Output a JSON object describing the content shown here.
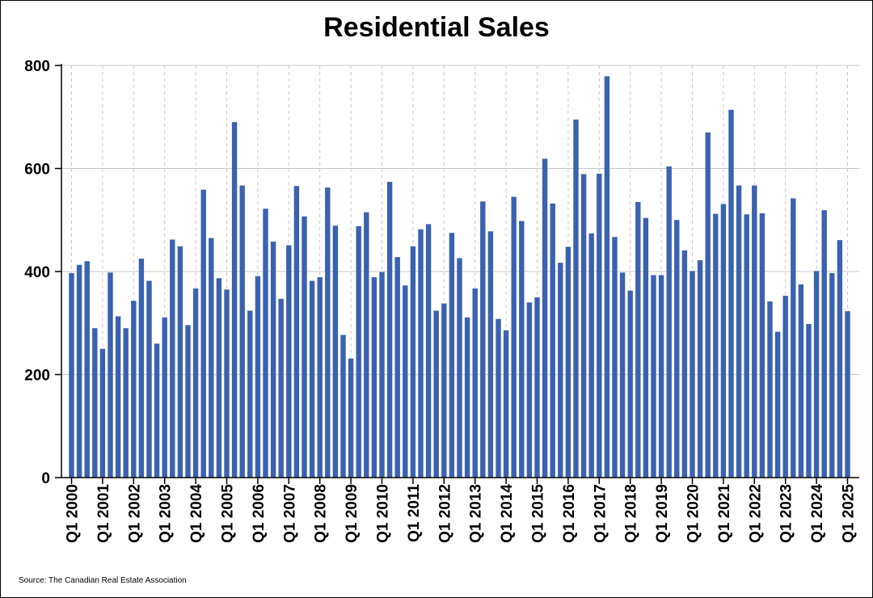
{
  "chart_data": {
    "type": "bar",
    "title": "Residential Sales",
    "xlabel": "",
    "ylabel": "",
    "ylim": [
      0,
      800
    ],
    "yticks": [
      0,
      200,
      400,
      600,
      800
    ],
    "grid": {
      "horizontal": true,
      "vertical_dashed": true
    },
    "bar_color": "#3a62b0",
    "x_tick_labels": [
      "Q1 2000",
      "Q1 2001",
      "Q1 2002",
      "Q1 2003",
      "Q1 2004",
      "Q1 2005",
      "Q1 2006",
      "Q1 2007",
      "Q1 2008",
      "Q1 2009",
      "Q1 2010",
      "Q1 2011",
      "Q1 2012",
      "Q1 2013",
      "Q1 2014",
      "Q1 2015",
      "Q1 2016",
      "Q1 2017",
      "Q1 2018",
      "Q1 2019",
      "Q1 2020",
      "Q1 2021",
      "Q1 2022",
      "Q1 2023",
      "Q1 2024",
      "Q1 2025"
    ],
    "values": [
      397,
      413,
      420,
      290,
      250,
      398,
      313,
      290,
      343,
      425,
      382,
      260,
      311,
      462,
      449,
      296,
      367,
      559,
      465,
      387,
      365,
      690,
      567,
      324,
      391,
      522,
      458,
      347,
      451,
      566,
      507,
      382,
      389,
      563,
      489,
      277,
      231,
      488,
      515,
      389,
      399,
      574,
      428,
      373,
      449,
      482,
      492,
      324,
      338,
      475,
      426,
      311,
      367,
      536,
      478,
      308,
      286,
      545,
      498,
      340,
      350,
      619,
      532,
      417,
      448,
      695,
      589,
      474,
      590,
      779,
      467,
      398,
      363,
      535,
      504,
      393,
      393,
      604,
      500,
      441,
      401,
      422,
      670,
      512,
      531,
      714,
      567,
      511,
      567,
      513,
      342,
      283,
      353,
      542,
      375,
      298,
      401,
      519,
      397,
      461,
      323
    ],
    "source": "Source: The Canadian Real Estate Association"
  }
}
